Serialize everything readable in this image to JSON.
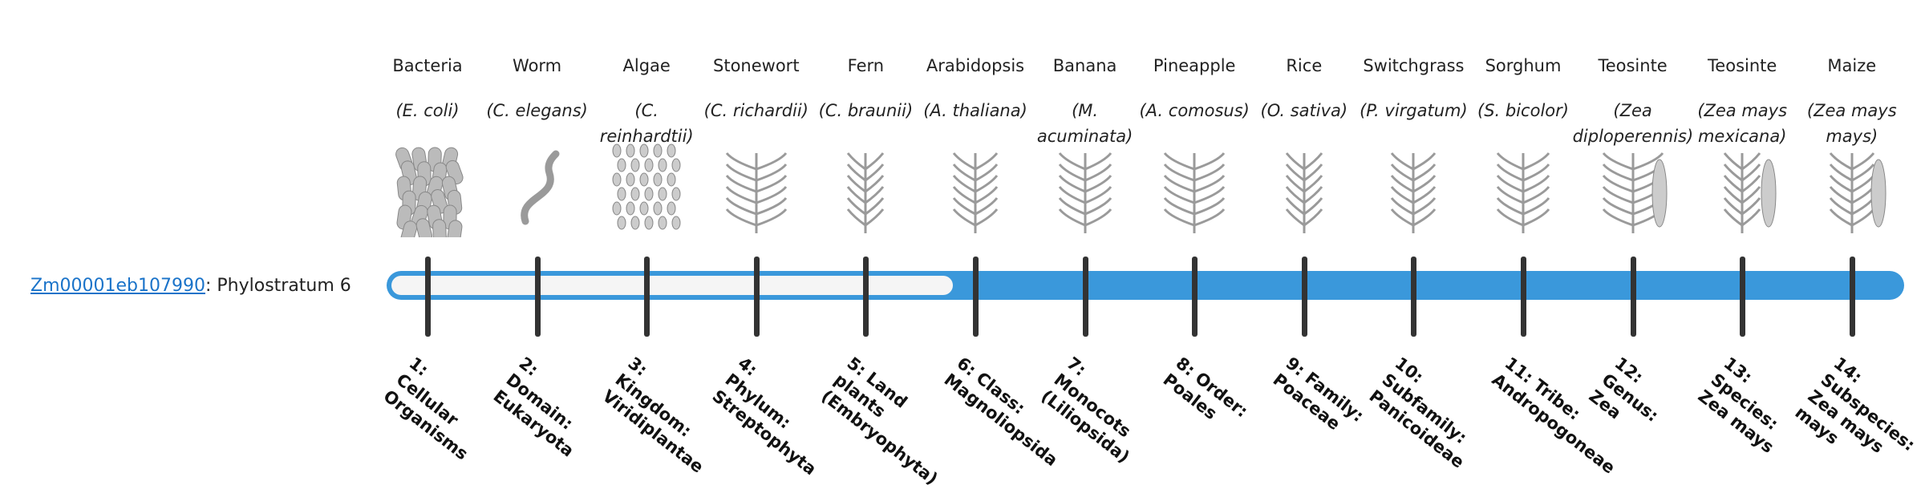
{
  "gene": {
    "id": "Zm00001eb107990",
    "status": ": Phylostratum 6"
  },
  "organisms": [
    {
      "common": "Bacteria",
      "scientific": "(E. coli)"
    },
    {
      "common": "Worm",
      "scientific": "(C. elegans)"
    },
    {
      "common": "Algae",
      "scientific": "(C. reinhardtii)"
    },
    {
      "common": "Stonewort",
      "scientific": "(C. richardii)"
    },
    {
      "common": "Fern",
      "scientific": "(C. braunii)"
    },
    {
      "common": "Arabidopsis",
      "scientific": "(A. thaliana)"
    },
    {
      "common": "Banana",
      "scientific": "(M. acuminata)"
    },
    {
      "common": "Pineapple",
      "scientific": "(A. comosus)"
    },
    {
      "common": "Rice",
      "scientific": "(O. sativa)"
    },
    {
      "common": "Switchgrass",
      "scientific": "(P. virgatum)"
    },
    {
      "common": "Sorghum",
      "scientific": "(S. bicolor)"
    },
    {
      "common": "Teosinte",
      "scientific": "(Zea diploperennis)"
    },
    {
      "common": "Teosinte",
      "scientific": "(Zea mays mexicana)"
    },
    {
      "common": "Maize",
      "scientific": "(Zea mays mays)"
    }
  ],
  "strata": [
    "1: Cellular Organisms",
    "2: Domain: Eukaryota",
    "3: Kingdom: Viridiplantae",
    "4: Phylum: Streptophyta",
    "5: Land plants (Embryophyta)",
    "6: Class: Magnoliopsida",
    "7: Monocots (Liliopsida)",
    "8: Order: Poales",
    "9: Family: Poaceae",
    "10: Subfamily: Panicoideae",
    "11: Tribe: Andropogoneae",
    "12: Genus: Zea",
    "13: Species: Zea mays",
    "14: Subspecies: Zea mays mays"
  ]
}
